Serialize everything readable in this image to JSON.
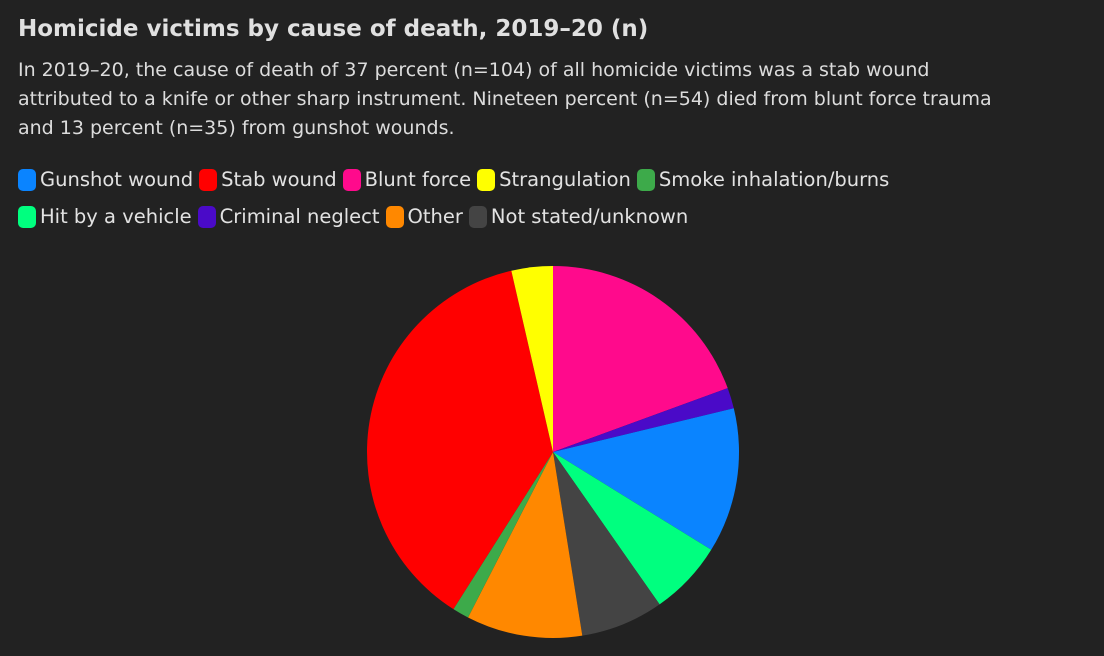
{
  "title": "Homicide victims by cause of death, 2019–20 (n)",
  "subtitle": "In 2019–20, the cause of death of 37 percent (n=104) of all homicide victims was a stab wound attributed to a knife or other sharp instrument. Nineteen percent (n=54) died from blunt force trauma and 13 percent (n=35) from gunshot wounds.",
  "chart_data": {
    "type": "pie",
    "title": "Homicide victims by cause of death, 2019–20 (n)",
    "legend_position": "top",
    "series": [
      {
        "name": "Gunshot wound",
        "value": 35,
        "color": "#0a84ff"
      },
      {
        "name": "Stab wound",
        "value": 104,
        "color": "#ff0000"
      },
      {
        "name": "Blunt force",
        "value": 54,
        "color": "#ff0a8c"
      },
      {
        "name": "Strangulation",
        "value": 10,
        "color": "#ffff00"
      },
      {
        "name": "Smoke inhalation/burns",
        "value": 4,
        "color": "#3daa4a"
      },
      {
        "name": "Hit by a vehicle",
        "value": 18,
        "color": "#00ff7f"
      },
      {
        "name": "Criminal neglect",
        "value": 5,
        "color": "#4a0ac8"
      },
      {
        "name": "Other",
        "value": 28,
        "color": "#ff8800"
      },
      {
        "name": "Not stated/unknown",
        "value": 20,
        "color": "#444444"
      }
    ],
    "draw_order": [
      "Blunt force",
      "Criminal neglect",
      "Gunshot wound",
      "Hit by a vehicle",
      "Not stated/unknown",
      "Other",
      "Smoke inhalation/burns",
      "Stab wound",
      "Strangulation"
    ]
  }
}
